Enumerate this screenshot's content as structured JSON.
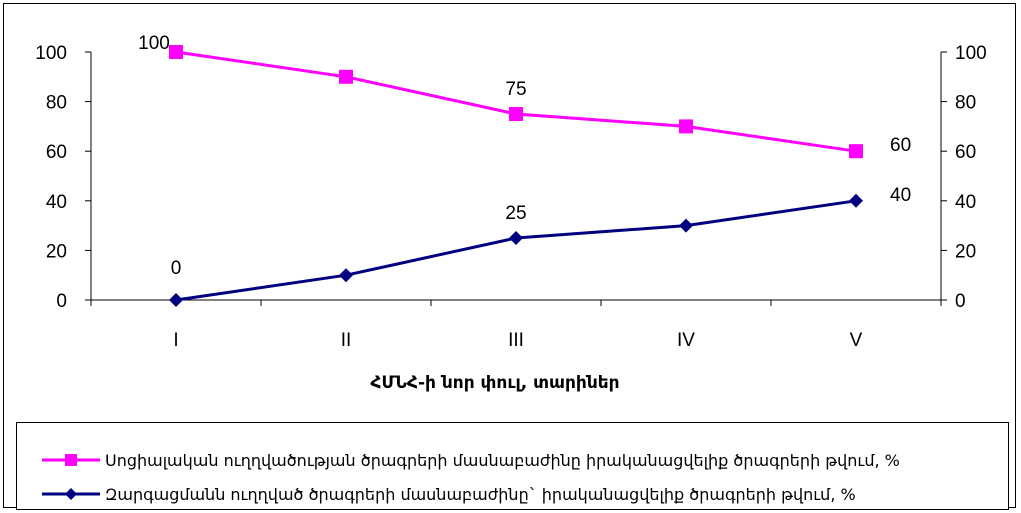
{
  "chart_data": {
    "type": "line",
    "categories": [
      "I",
      "II",
      "III",
      "IV",
      "V"
    ],
    "xlabel": "ՀՄՆՀ-ի նոր փուլ, տարիներ",
    "ylim": [
      0,
      100
    ],
    "yticks": [
      0,
      20,
      40,
      60,
      80,
      100
    ],
    "secondary_ylim": [
      0,
      100
    ],
    "grid": false,
    "legend_position": "bottom",
    "series": [
      {
        "name": "Սոցիալական ուղղվածության ծրագրերի մասնաբաժինը իրականացվելիք ծրագրերի թվում, %",
        "values": [
          100,
          90,
          75,
          70,
          60
        ],
        "color": "#ff00ff",
        "marker": "square",
        "data_labels": [
          {
            "index": 0,
            "text": "100"
          },
          {
            "index": 2,
            "text": "75"
          },
          {
            "index": 4,
            "text": "60"
          }
        ]
      },
      {
        "name": "Զարգացմանն ուղղված ծրագրերի մասնաբաժինը` իրականացվելիք ծրագրերի թվում, %",
        "values": [
          0,
          10,
          25,
          30,
          40
        ],
        "color": "#000080",
        "marker": "diamond",
        "data_labels": [
          {
            "index": 0,
            "text": "0"
          },
          {
            "index": 2,
            "text": "25"
          },
          {
            "index": 4,
            "text": "40"
          }
        ]
      }
    ]
  }
}
